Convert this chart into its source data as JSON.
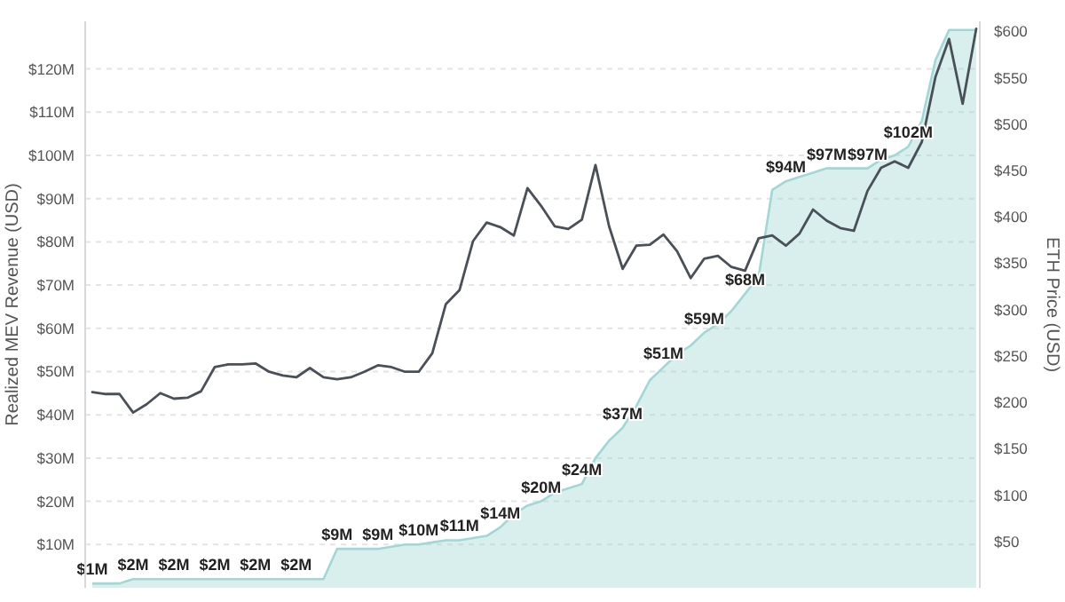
{
  "chart_data": {
    "type": "area",
    "ylabel": "Realized MEV Revenue (USD)",
    "y2label": "ETH Price (USD)",
    "categories": [
      null,
      null,
      null,
      null,
      null,
      null,
      null,
      null,
      null,
      null,
      null,
      null,
      null,
      null,
      null,
      null,
      null,
      null,
      null,
      null,
      null,
      null,
      null,
      null,
      null,
      null,
      null,
      null,
      null,
      null,
      null,
      null,
      null,
      null,
      null,
      null,
      null,
      null,
      null,
      null,
      null,
      null,
      null,
      null,
      null,
      null,
      null,
      null,
      null,
      null,
      null,
      null,
      null,
      null,
      null,
      null,
      null,
      null,
      null,
      null,
      null,
      null,
      null,
      null,
      null,
      null
    ],
    "series": [
      {
        "axis": "y",
        "color": "#9fd8d5",
        "values": [
          1,
          1,
          1,
          2,
          2,
          2,
          2,
          2,
          2,
          2,
          2,
          2,
          2,
          2,
          2,
          2,
          2,
          2,
          9,
          9,
          9,
          9,
          9.5,
          10,
          10,
          10.5,
          11,
          11,
          11.5,
          12,
          14,
          17,
          19,
          20,
          22,
          23,
          24,
          30,
          34,
          37,
          42,
          48,
          51,
          54,
          56,
          59,
          61,
          64,
          68,
          72,
          92,
          94,
          95,
          96,
          97,
          97,
          97,
          97,
          99,
          100,
          102,
          108,
          122,
          129,
          129,
          129
        ],
        "value_labels": [
          "$1M",
          null,
          null,
          "$2M",
          null,
          null,
          "$2M",
          null,
          null,
          "$2M",
          null,
          null,
          "$2M",
          null,
          null,
          "$2M",
          null,
          null,
          "$9M",
          null,
          null,
          "$9M",
          null,
          null,
          "$10M",
          null,
          null,
          "$11M",
          null,
          null,
          "$14M",
          null,
          null,
          "$20M",
          null,
          null,
          "$24M",
          null,
          null,
          "$37M",
          null,
          null,
          "$51M",
          null,
          null,
          "$59M",
          null,
          null,
          "$68M",
          null,
          null,
          "$94M",
          null,
          null,
          "$97M",
          null,
          null,
          "$97M",
          null,
          null,
          "$102M",
          null,
          null,
          null,
          null,
          null
        ]
      },
      {
        "type": "line",
        "axis": "y2",
        "color": "#4a5058",
        "values": [
          211,
          209,
          209,
          189,
          198,
          210,
          204,
          205,
          212,
          238,
          241,
          241,
          242,
          233,
          229,
          227,
          237,
          227,
          225,
          227,
          233,
          240,
          238,
          233,
          233,
          253,
          306,
          321,
          374,
          394,
          389,
          380,
          431,
          412,
          390,
          387,
          397,
          456,
          390,
          344,
          369,
          370,
          381,
          363,
          334,
          355,
          358,
          346,
          342,
          377,
          380,
          369,
          382,
          408,
          396,
          388,
          385,
          428,
          453,
          460,
          453,
          481,
          551,
          592,
          522,
          603
        ]
      }
    ],
    "ylim": [
      0,
      131
    ],
    "yticks": [
      {
        "value": 10,
        "label": "$10M"
      },
      {
        "value": 20,
        "label": "$20M"
      },
      {
        "value": 30,
        "label": "$30M"
      },
      {
        "value": 40,
        "label": "$40M"
      },
      {
        "value": 50,
        "label": "$50M"
      },
      {
        "value": 60,
        "label": "$60M"
      },
      {
        "value": 70,
        "label": "$70M"
      },
      {
        "value": 80,
        "label": "$80M"
      },
      {
        "value": 90,
        "label": "$90M"
      },
      {
        "value": 100,
        "label": "$100M"
      },
      {
        "value": 110,
        "label": "$110M"
      },
      {
        "value": 120,
        "label": "$120M"
      }
    ],
    "y2lim": [
      0,
      611
    ],
    "y2ticks": [
      {
        "value": 50,
        "label": "$50"
      },
      {
        "value": 100,
        "label": "$100"
      },
      {
        "value": 150,
        "label": "$150"
      },
      {
        "value": 200,
        "label": "$200"
      },
      {
        "value": 250,
        "label": "$250"
      },
      {
        "value": 300,
        "label": "$300"
      },
      {
        "value": 350,
        "label": "$350"
      },
      {
        "value": 400,
        "label": "$400"
      },
      {
        "value": 450,
        "label": "$450"
      },
      {
        "value": 500,
        "label": "$500"
      },
      {
        "value": 550,
        "label": "$550"
      },
      {
        "value": 600,
        "label": "$600"
      }
    ],
    "grid": "y"
  }
}
